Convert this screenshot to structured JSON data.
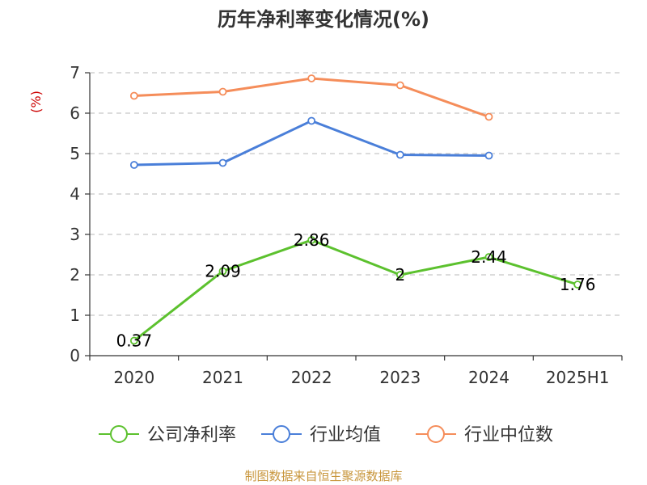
{
  "chart_data": {
    "type": "line",
    "title": "历年净利率变化情况(%)",
    "ylabel": "(%)",
    "xlabel": "",
    "categories": [
      "2020",
      "2021",
      "2022",
      "2023",
      "2024",
      "2025H1"
    ],
    "ylim": [
      0,
      7
    ],
    "yticks": [
      0,
      1,
      2,
      3,
      4,
      5,
      6,
      7
    ],
    "grid": true,
    "legend_position": "bottom",
    "series": [
      {
        "name": "公司净利率",
        "color": "#5cc12e",
        "values": [
          0.37,
          2.09,
          2.86,
          2,
          2.44,
          1.76
        ],
        "labels": [
          "0.37",
          "2.09",
          "2.86",
          "2",
          "2.44",
          "1.76"
        ]
      },
      {
        "name": "行业均值",
        "color": "#4a7fd9",
        "values": [
          4.72,
          4.77,
          5.81,
          4.97,
          4.95,
          null
        ]
      },
      {
        "name": "行业中位数",
        "color": "#f58d5a",
        "values": [
          6.43,
          6.53,
          6.86,
          6.69,
          5.91,
          null
        ]
      }
    ]
  },
  "footer": {
    "source": "制图数据来自恒生聚源数据库"
  }
}
